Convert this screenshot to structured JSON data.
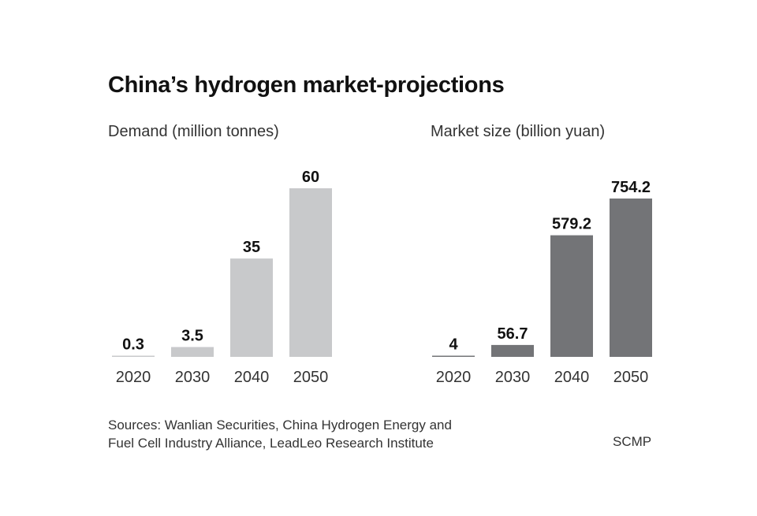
{
  "title": "China’s hydrogen market-projections",
  "sources_line1": "Sources: Wanlian Securities, China Hydrogen Energy and",
  "sources_line2": "Fuel Cell Industry Alliance, LeadLeo Research Institute",
  "credit": "SCMP",
  "chart_data": [
    {
      "type": "bar",
      "title": "Demand (million tonnes)",
      "categories": [
        "2020",
        "2030",
        "2040",
        "2050"
      ],
      "values": [
        0.3,
        3.5,
        35,
        60
      ],
      "value_labels": [
        "0.3",
        "3.5",
        "35",
        "60"
      ],
      "xlabel": "",
      "ylabel": "Demand (million tonnes)",
      "ylim": [
        0,
        60
      ],
      "grid": false,
      "color": "#c8c9cb"
    },
    {
      "type": "bar",
      "title": "Market size (billion yuan)",
      "categories": [
        "2020",
        "2030",
        "2040",
        "2050"
      ],
      "values": [
        4,
        56.7,
        579.2,
        754.2
      ],
      "value_labels": [
        "4",
        "56.7",
        "579.2",
        "754.2"
      ],
      "xlabel": "",
      "ylabel": "Market size (billion yuan)",
      "ylim": [
        0,
        754.2
      ],
      "grid": false,
      "color": "#737477"
    }
  ]
}
